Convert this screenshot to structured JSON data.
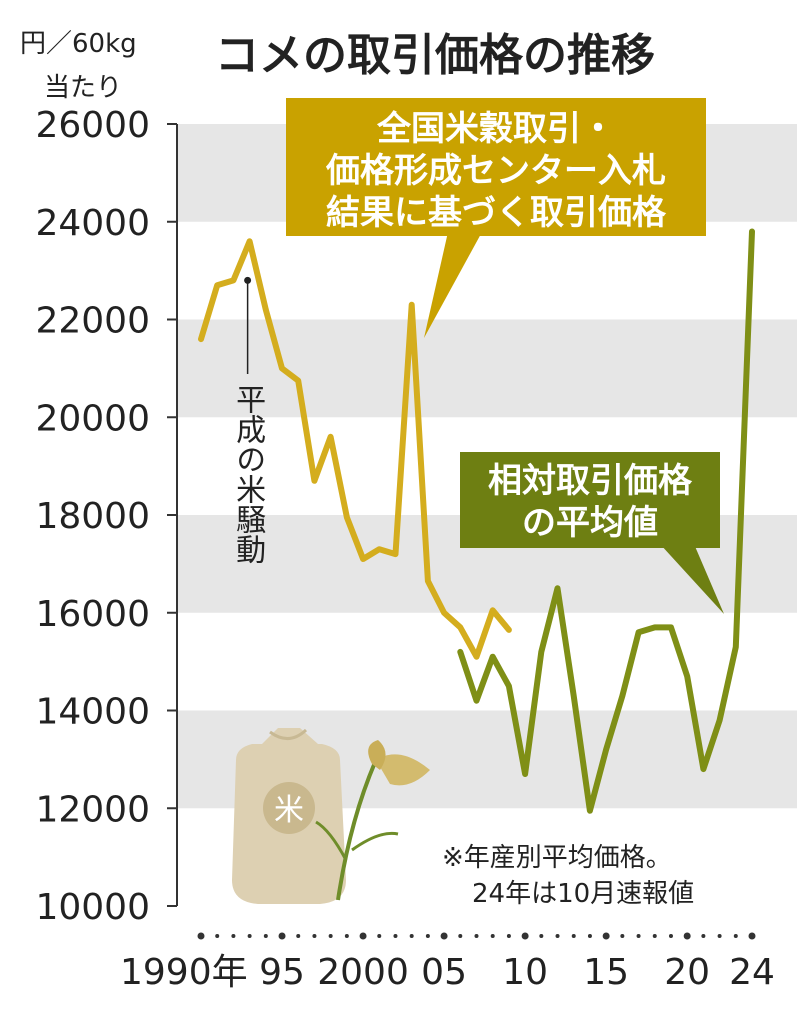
{
  "title": "コメの取引価格の推移",
  "unit_label": [
    "円／60kg",
    "当たり"
  ],
  "note": [
    "※年産別平均価格。",
    "24年は10月速報値"
  ],
  "annotation": "平成の米騒動",
  "bag_label": "米",
  "colors": {
    "series1": "#d4ad1e",
    "series2": "#7f8f16",
    "box1": "#c9a200",
    "box2": "#6e7f12",
    "band": "#e6e6e6",
    "text": "#222222"
  },
  "chart_data": {
    "type": "line",
    "title": "コメの取引価格の推移",
    "ylabel": "円／60kg当たり",
    "xlabel": "",
    "ylim": [
      10000,
      26000
    ],
    "xlim": [
      1990,
      2024
    ],
    "yticks": [
      10000,
      12000,
      14000,
      16000,
      18000,
      20000,
      22000,
      24000,
      26000
    ],
    "ytick_labels": [
      "10000",
      "12000",
      "14000",
      "16000",
      "18000",
      "20000",
      "22000",
      "24000",
      "26000"
    ],
    "xticks": [
      1990,
      1995,
      2000,
      2005,
      2010,
      2015,
      2020,
      2024
    ],
    "xtick_labels": [
      "1990年",
      "95",
      "2000",
      "05",
      "10",
      "15",
      "20",
      "24"
    ],
    "grid": "alternating horizontal bands",
    "series": [
      {
        "name": "全国米穀取引・価格形成センター入札結果に基づく取引価格",
        "legend_lines": [
          "全国米穀取引・",
          "価格形成センター入札",
          "結果に基づく取引価格"
        ],
        "x": [
          1990,
          1991,
          1992,
          1993,
          1994,
          1995,
          1996,
          1997,
          1998,
          1999,
          2000,
          2001,
          2002,
          2003,
          2004,
          2005,
          2006,
          2007,
          2008,
          2009
        ],
        "values": [
          21600,
          22700,
          22800,
          23600,
          22200,
          21000,
          20750,
          18700,
          19600,
          17950,
          17100,
          17300,
          17200,
          22300,
          16650,
          16000,
          15700,
          15100,
          16050,
          15650
        ]
      },
      {
        "name": "相対取引価格の平均値",
        "legend_lines": [
          "相対取引価格",
          "の平均値"
        ],
        "x": [
          2006,
          2007,
          2008,
          2009,
          2010,
          2011,
          2012,
          2013,
          2014,
          2015,
          2016,
          2017,
          2018,
          2019,
          2020,
          2021,
          2022,
          2023,
          2024
        ],
        "values": [
          15200,
          14200,
          15100,
          14500,
          12700,
          15200,
          16500,
          14300,
          11950,
          13200,
          14300,
          15600,
          15700,
          15700,
          14700,
          12800,
          13800,
          15300,
          23800
        ]
      }
    ],
    "annotations": [
      {
        "text": "平成の米騒動",
        "x": 1993,
        "y": 22800
      }
    ]
  }
}
